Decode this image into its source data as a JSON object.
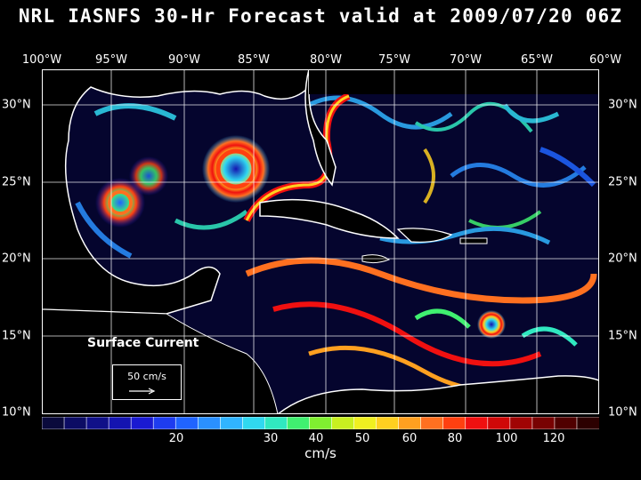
{
  "title": "NRL IASNFS  30-Hr Forecast valid at 2009/07/20 06Z",
  "lon_labels": [
    "100°W",
    "95°W",
    "90°W",
    "85°W",
    "80°W",
    "75°W",
    "70°W",
    "65°W",
    "60°W"
  ],
  "lat_labels": [
    "30°N",
    "25°N",
    "20°N",
    "15°N",
    "10°N"
  ],
  "overlay": {
    "surface_label": "Surface Current",
    "reference_vector": "50 cm/s"
  },
  "colorbar": {
    "tick_labels": [
      "20",
      "30",
      "40",
      "50",
      "60",
      "80",
      "100",
      "120"
    ],
    "units": "cm/s",
    "colors": [
      "#0a0a3c",
      "#0c0c64",
      "#101088",
      "#1414b0",
      "#1a1ad2",
      "#1e3cf0",
      "#2064ff",
      "#2a90ff",
      "#30b4ff",
      "#30d8f0",
      "#30e8c0",
      "#40f070",
      "#80f030",
      "#c8f020",
      "#f0f020",
      "#ffd020",
      "#ffa020",
      "#ff7020",
      "#ff4010",
      "#f01010",
      "#d00808",
      "#a00404",
      "#780202",
      "#500000",
      "#2c0000"
    ]
  },
  "colors": {
    "background": "#000000",
    "ocean_low": "#000030",
    "land": "#000000",
    "coastline": "#ffffff",
    "grid": "#ffffff"
  }
}
